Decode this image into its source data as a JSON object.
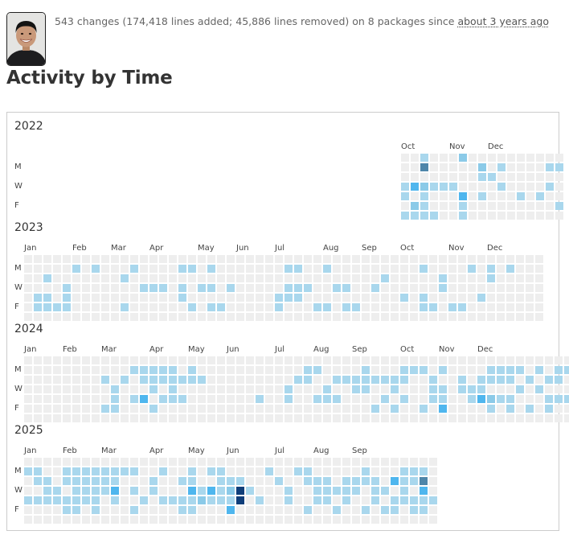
{
  "header": {
    "summary": "543 changes (174,418 lines added; 45,886 lines removed) on 8 packages since ",
    "since": "about 3 years ago"
  },
  "page_title": "Activity by Time",
  "activity": {
    "day_labels": [
      "M",
      "W",
      "F"
    ],
    "colors": {
      "empty": "#eeeeee",
      "l1": "#a9d7ed",
      "l2": "#8bcae8",
      "l3": "#4fb6ee",
      "l4": "#4e86aa",
      "l5": "#0f3e7a"
    },
    "years": [
      {
        "year": "2022",
        "months": [
          {
            "label": "Oct",
            "week": 0
          },
          {
            "label": "Nov",
            "week": 5
          },
          {
            "label": "Dec",
            "week": 9
          }
        ],
        "grid": [
          "..1...2..........",
          "..4.....2.1....11",
          "........11.......",
          "132111....1....1.",
          "1.1...3.1...1.1..",
          ".21...1.........1",
          "1111..1.........."
        ]
      },
      {
        "year": "2023",
        "months": [
          {
            "label": "Jan",
            "week": 0
          },
          {
            "label": "Feb",
            "week": 5
          },
          {
            "label": "Mar",
            "week": 9
          },
          {
            "label": "Apr",
            "week": 13
          },
          {
            "label": "May",
            "week": 18
          },
          {
            "label": "Jun",
            "week": 22
          },
          {
            "label": "Jul",
            "week": 26
          },
          {
            "label": "Aug",
            "week": 31
          },
          {
            "label": "Sep",
            "week": 35
          },
          {
            "label": "Oct",
            "week": 39
          },
          {
            "label": "Nov",
            "week": 44
          },
          {
            "label": "Dec",
            "week": 48
          }
        ],
        "grid": [
          "......................................................",
          ".....1.1...1....11.1.......11..1.........1....1.1.1...",
          "..1.......1..........................1.....1....1.....",
          "....1.......111.1.11.1.....111..11..1......1..........",
          ".11.1...........1.........111..........1.1.....1......",
          ".1111.....1......1.11.....1...11.11......11.11........",
          "......................................................"
        ]
      },
      {
        "year": "2024",
        "months": [
          {
            "label": "Jan",
            "week": 0
          },
          {
            "label": "Feb",
            "week": 4
          },
          {
            "label": "Mar",
            "week": 8
          },
          {
            "label": "Apr",
            "week": 13
          },
          {
            "label": "May",
            "week": 17
          },
          {
            "label": "Jun",
            "week": 21
          },
          {
            "label": "Jul",
            "week": 26
          },
          {
            "label": "Aug",
            "week": 30
          },
          {
            "label": "Sep",
            "week": 34
          },
          {
            "label": "Oct",
            "week": 39
          },
          {
            "label": "Nov",
            "week": 43
          },
          {
            "label": "Dec",
            "week": 47
          }
        ],
        "grid": [
          "..........................................................",
          "...........11111.1...........11....1...111.1....1111.1.11.",
          "........1.1.1111111.........11..11111111..1..1.1111.1.11..",
          ".........1...1.1...........1...1..11..1...11.111...1.1...1",
          ".........1.13.111.......1..1..111....1.1..11..13211...1111",
          "........11...1......................1.1..1.3....1.1.1.1..1",
          ".........................................................."
        ]
      },
      {
        "year": "2025",
        "months": [
          {
            "label": "Jan",
            "week": 0
          },
          {
            "label": "Feb",
            "week": 4
          },
          {
            "label": "Mar",
            "week": 8
          },
          {
            "label": "Apr",
            "week": 13
          },
          {
            "label": "May",
            "week": 17
          },
          {
            "label": "Jun",
            "week": 21
          },
          {
            "label": "Jul",
            "week": 26
          },
          {
            "label": "Aug",
            "week": 30
          },
          {
            "label": "Sep",
            "week": 34
          }
        ],
        "grid": [
          "...........................................",
          "11..11111111..1..1.11....1..11.....1...111.",
          ".11.111111...1..11..111...1..111.1111.3114.",
          "..11.11113.1.1...3131251...1..11111.11.1.3.",
          "11111111.1..1.111121115.1..1..11.1..1.11111",
          "....11.1...1....11...3.......1..1..1.11.11.",
          "..........................................."
        ]
      }
    ]
  }
}
